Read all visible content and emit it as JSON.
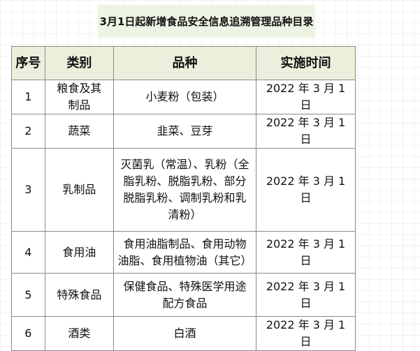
{
  "title": "3月1日起新增食品安全信息追溯管理品种目录",
  "table": {
    "headers": [
      "序号",
      "类别",
      "品种",
      "实施时间"
    ],
    "rows": [
      {
        "no": "1",
        "category": [
          "粮食及其",
          "制品"
        ],
        "variety": [
          "小麦粉（包装）"
        ],
        "date": "2022 年 3 月 1 日"
      },
      {
        "no": "2",
        "category": [
          "蔬菜"
        ],
        "variety": [
          "韭菜、豆芽"
        ],
        "date": "2022 年 3 月 1 日"
      },
      {
        "no": "3",
        "category": [
          "乳制品"
        ],
        "variety": [
          "灭菌乳（常温）、乳粉（全",
          "脂乳粉、脱脂乳粉、部分",
          "脱脂乳粉、调制乳粉和乳",
          "清粉）"
        ],
        "date": "2022 年 3 月 1 日"
      },
      {
        "no": "4",
        "category": [
          "食用油"
        ],
        "variety": [
          "食用油脂制品、食用动物",
          "油脂、食用植物油（其它）"
        ],
        "date": "2022 年 3 月 1 日"
      },
      {
        "no": "5",
        "category": [
          "特殊食品"
        ],
        "variety": [
          "保健食品、特殊医学用途",
          "配方食品"
        ],
        "date": "2022 年 3 月 1 日"
      },
      {
        "no": "6",
        "category": [
          "酒类"
        ],
        "variety": [
          "白酒"
        ],
        "date": "2022 年 3 月 1 日"
      }
    ]
  },
  "colors": {
    "title_bg": "#edf4e3",
    "header_bg": "#ebefdc",
    "border": "#8a8a8a"
  }
}
